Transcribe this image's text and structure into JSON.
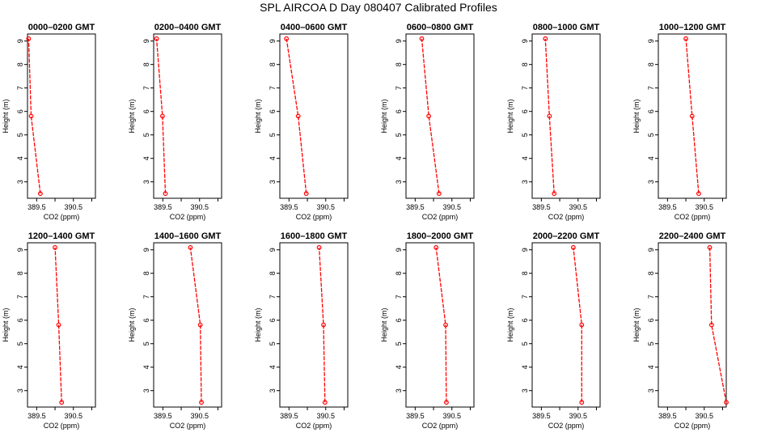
{
  "figure_title": "SPL AIRCOA D  Day 080407  Calibrated Profiles",
  "colors": {
    "series": "#ff0000",
    "axes": "#000000",
    "background": "#ffffff"
  },
  "chart_data": [
    {
      "type": "line",
      "title": "0000–0200 GMT",
      "xlabel": "CO2 (ppm)",
      "ylabel": "Height (m)",
      "xlim": [
        389.25,
        391.1
      ],
      "ylim": [
        2.3,
        9.3
      ],
      "xticks": [
        389.5,
        390.0,
        390.5,
        391.0
      ],
      "xtick_labels": [
        "389.5",
        "",
        "390.5",
        ""
      ],
      "yticks": [
        3,
        4,
        5,
        6,
        7,
        8,
        9
      ],
      "ytick_labels": [
        "3",
        "4",
        "5",
        "6",
        "7",
        "8",
        "9"
      ],
      "series": [
        {
          "name": "CO2",
          "x": [
            389.6,
            389.35,
            389.28
          ],
          "y": [
            2.5,
            5.8,
            9.1
          ]
        }
      ]
    },
    {
      "type": "line",
      "title": "0200–0400 GMT",
      "xlabel": "CO2 (ppm)",
      "ylabel": "Height (m)",
      "xlim": [
        389.25,
        391.1
      ],
      "ylim": [
        2.3,
        9.3
      ],
      "xticks": [
        389.5,
        390.0,
        390.5,
        391.0
      ],
      "xtick_labels": [
        "389.5",
        "",
        "390.5",
        ""
      ],
      "yticks": [
        3,
        4,
        5,
        6,
        7,
        8,
        9
      ],
      "ytick_labels": [
        "3",
        "4",
        "5",
        "6",
        "7",
        "8",
        "9"
      ],
      "series": [
        {
          "name": "CO2",
          "x": [
            389.57,
            389.49,
            389.33
          ],
          "y": [
            2.5,
            5.8,
            9.1
          ]
        }
      ]
    },
    {
      "type": "line",
      "title": "0400–0600 GMT",
      "xlabel": "CO2 (ppm)",
      "ylabel": "Height (m)",
      "xlim": [
        389.25,
        391.1
      ],
      "ylim": [
        2.3,
        9.3
      ],
      "xticks": [
        389.5,
        390.0,
        390.5,
        391.0
      ],
      "xtick_labels": [
        "389.5",
        "",
        "390.5",
        ""
      ],
      "yticks": [
        3,
        4,
        5,
        6,
        7,
        8,
        9
      ],
      "ytick_labels": [
        "3",
        "4",
        "5",
        "6",
        "7",
        "8",
        "9"
      ],
      "series": [
        {
          "name": "CO2",
          "x": [
            389.97,
            389.75,
            389.43
          ],
          "y": [
            2.5,
            5.8,
            9.1
          ]
        }
      ]
    },
    {
      "type": "line",
      "title": "0600–0800 GMT",
      "xlabel": "CO2 (ppm)",
      "ylabel": "Height (m)",
      "xlim": [
        389.25,
        391.1
      ],
      "ylim": [
        2.3,
        9.3
      ],
      "xticks": [
        389.5,
        390.0,
        390.5,
        391.0
      ],
      "xtick_labels": [
        "389.5",
        "",
        "390.5",
        ""
      ],
      "yticks": [
        3,
        4,
        5,
        6,
        7,
        8,
        9
      ],
      "ytick_labels": [
        "3",
        "4",
        "5",
        "6",
        "7",
        "8",
        "9"
      ],
      "series": [
        {
          "name": "CO2",
          "x": [
            390.15,
            389.87,
            389.68
          ],
          "y": [
            2.5,
            5.8,
            9.1
          ]
        }
      ]
    },
    {
      "type": "line",
      "title": "0800–1000 GMT",
      "xlabel": "CO2 (ppm)",
      "ylabel": "Height (m)",
      "xlim": [
        389.25,
        391.1
      ],
      "ylim": [
        2.3,
        9.3
      ],
      "xticks": [
        389.5,
        390.0,
        390.5,
        391.0
      ],
      "xtick_labels": [
        "389.5",
        "",
        "390.5",
        ""
      ],
      "yticks": [
        3,
        4,
        5,
        6,
        7,
        8,
        9
      ],
      "ytick_labels": [
        "3",
        "4",
        "5",
        "6",
        "7",
        "8",
        "9"
      ],
      "series": [
        {
          "name": "CO2",
          "x": [
            389.85,
            389.72,
            389.61
          ],
          "y": [
            2.5,
            5.8,
            9.1
          ]
        }
      ]
    },
    {
      "type": "line",
      "title": "1000–1200 GMT",
      "xlabel": "CO2 (ppm)",
      "ylabel": "Height (m)",
      "xlim": [
        389.25,
        391.1
      ],
      "ylim": [
        2.3,
        9.3
      ],
      "xticks": [
        389.5,
        390.0,
        390.5,
        391.0
      ],
      "xtick_labels": [
        "389.5",
        "",
        "390.5",
        ""
      ],
      "yticks": [
        3,
        4,
        5,
        6,
        7,
        8,
        9
      ],
      "ytick_labels": [
        "3",
        "4",
        "5",
        "6",
        "7",
        "8",
        "9"
      ],
      "series": [
        {
          "name": "CO2",
          "x": [
            390.35,
            390.17,
            390.0
          ],
          "y": [
            2.5,
            5.8,
            9.1
          ]
        }
      ]
    },
    {
      "type": "line",
      "title": "1200–1400 GMT",
      "xlabel": "CO2 (ppm)",
      "ylabel": "Height (m)",
      "xlim": [
        389.25,
        391.1
      ],
      "ylim": [
        2.3,
        9.3
      ],
      "xticks": [
        389.5,
        390.0,
        390.5,
        391.0
      ],
      "xtick_labels": [
        "389.5",
        "",
        "390.5",
        ""
      ],
      "yticks": [
        3,
        4,
        5,
        6,
        7,
        8,
        9
      ],
      "ytick_labels": [
        "3",
        "4",
        "5",
        "6",
        "7",
        "8",
        "9"
      ],
      "series": [
        {
          "name": "CO2",
          "x": [
            390.18,
            390.1,
            390.0
          ],
          "y": [
            2.5,
            5.8,
            9.1
          ]
        }
      ]
    },
    {
      "type": "line",
      "title": "1400–1600 GMT",
      "xlabel": "CO2 (ppm)",
      "ylabel": "Height (m)",
      "xlim": [
        389.25,
        391.1
      ],
      "ylim": [
        2.3,
        9.3
      ],
      "xticks": [
        389.5,
        390.0,
        390.5,
        391.0
      ],
      "xtick_labels": [
        "389.5",
        "",
        "390.5",
        ""
      ],
      "yticks": [
        3,
        4,
        5,
        6,
        7,
        8,
        9
      ],
      "ytick_labels": [
        "3",
        "4",
        "5",
        "6",
        "7",
        "8",
        "9"
      ],
      "series": [
        {
          "name": "CO2",
          "x": [
            390.55,
            390.52,
            390.25
          ],
          "y": [
            2.5,
            5.8,
            9.1
          ]
        }
      ]
    },
    {
      "type": "line",
      "title": "1600–1800 GMT",
      "xlabel": "CO2 (ppm)",
      "ylabel": "Height (m)",
      "xlim": [
        389.25,
        391.1
      ],
      "ylim": [
        2.3,
        9.3
      ],
      "xticks": [
        389.5,
        390.0,
        390.5,
        391.0
      ],
      "xtick_labels": [
        "389.5",
        "",
        "390.5",
        ""
      ],
      "yticks": [
        3,
        4,
        5,
        6,
        7,
        8,
        9
      ],
      "ytick_labels": [
        "3",
        "4",
        "5",
        "6",
        "7",
        "8",
        "9"
      ],
      "series": [
        {
          "name": "CO2",
          "x": [
            390.48,
            390.44,
            390.32
          ],
          "y": [
            2.5,
            5.8,
            9.1
          ]
        }
      ]
    },
    {
      "type": "line",
      "title": "1800–2000 GMT",
      "xlabel": "CO2 (ppm)",
      "ylabel": "Height (m)",
      "xlim": [
        389.25,
        391.1
      ],
      "ylim": [
        2.3,
        9.3
      ],
      "xticks": [
        389.5,
        390.0,
        390.5,
        391.0
      ],
      "xtick_labels": [
        "389.5",
        "",
        "390.5",
        ""
      ],
      "yticks": [
        3,
        4,
        5,
        6,
        7,
        8,
        9
      ],
      "ytick_labels": [
        "3",
        "4",
        "5",
        "6",
        "7",
        "8",
        "9"
      ],
      "series": [
        {
          "name": "CO2",
          "x": [
            390.35,
            390.33,
            390.07
          ],
          "y": [
            2.5,
            5.8,
            9.1
          ]
        }
      ]
    },
    {
      "type": "line",
      "title": "2000–2200 GMT",
      "xlabel": "CO2 (ppm)",
      "ylabel": "Height (m)",
      "xlim": [
        389.25,
        391.1
      ],
      "ylim": [
        2.3,
        9.3
      ],
      "xticks": [
        389.5,
        390.0,
        390.5,
        391.0
      ],
      "xtick_labels": [
        "389.5",
        "",
        "390.5",
        ""
      ],
      "yticks": [
        3,
        4,
        5,
        6,
        7,
        8,
        9
      ],
      "ytick_labels": [
        "3",
        "4",
        "5",
        "6",
        "7",
        "8",
        "9"
      ],
      "series": [
        {
          "name": "CO2",
          "x": [
            390.6,
            390.6,
            390.37
          ],
          "y": [
            2.5,
            5.8,
            9.1
          ]
        }
      ]
    },
    {
      "type": "line",
      "title": "2200–2400 GMT",
      "xlabel": "CO2 (ppm)",
      "ylabel": "Height (m)",
      "xlim": [
        389.25,
        391.1
      ],
      "ylim": [
        2.3,
        9.3
      ],
      "xticks": [
        389.5,
        390.0,
        390.5,
        391.0
      ],
      "xtick_labels": [
        "389.5",
        "",
        "390.5",
        ""
      ],
      "yticks": [
        3,
        4,
        5,
        6,
        7,
        8,
        9
      ],
      "ytick_labels": [
        "3",
        "4",
        "5",
        "6",
        "7",
        "8",
        "9"
      ],
      "series": [
        {
          "name": "CO2",
          "x": [
            391.1,
            390.7,
            390.65
          ],
          "y": [
            2.5,
            5.8,
            9.1
          ]
        }
      ]
    }
  ]
}
